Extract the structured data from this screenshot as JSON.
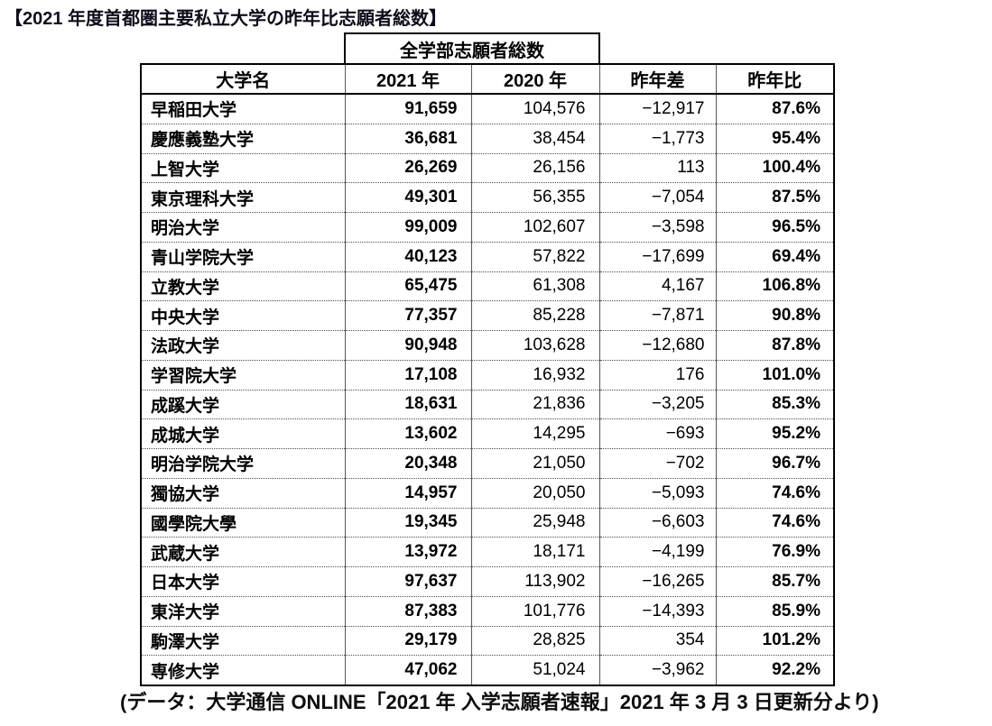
{
  "page": {
    "title": "【2021 年度首都圏主要私立大学の昨年比志願者総数】",
    "source_note": "(データ：大学通信 ONLINE「2021 年 入学志願者速報」2021 年 3 月 3 日更新分より)"
  },
  "chart_data": {
    "type": "table",
    "title": "2021年度首都圏主要私立大学の昨年比志願者総数",
    "merged_column_group_header": "全学部志願者総数",
    "columns": [
      "大学名",
      "2021 年",
      "2020 年",
      "昨年差",
      "昨年比"
    ],
    "rows": [
      {
        "name": "早稲田大学",
        "v2021": "91,659",
        "v2020": "104,576",
        "diff": "−12,917",
        "ratio": "87.6%"
      },
      {
        "name": "慶應義塾大学",
        "v2021": "36,681",
        "v2020": "38,454",
        "diff": "−1,773",
        "ratio": "95.4%"
      },
      {
        "name": "上智大学",
        "v2021": "26,269",
        "v2020": "26,156",
        "diff": "113",
        "ratio": "100.4%"
      },
      {
        "name": "東京理科大学",
        "v2021": "49,301",
        "v2020": "56,355",
        "diff": "−7,054",
        "ratio": "87.5%"
      },
      {
        "name": "明治大学",
        "v2021": "99,009",
        "v2020": "102,607",
        "diff": "−3,598",
        "ratio": "96.5%"
      },
      {
        "name": "青山学院大学",
        "v2021": "40,123",
        "v2020": "57,822",
        "diff": "−17,699",
        "ratio": "69.4%"
      },
      {
        "name": "立教大学",
        "v2021": "65,475",
        "v2020": "61,308",
        "diff": "4,167",
        "ratio": "106.8%"
      },
      {
        "name": "中央大学",
        "v2021": "77,357",
        "v2020": "85,228",
        "diff": "−7,871",
        "ratio": "90.8%"
      },
      {
        "name": "法政大学",
        "v2021": "90,948",
        "v2020": "103,628",
        "diff": "−12,680",
        "ratio": "87.8%"
      },
      {
        "name": "学習院大学",
        "v2021": "17,108",
        "v2020": "16,932",
        "diff": "176",
        "ratio": "101.0%"
      },
      {
        "name": "成蹊大学",
        "v2021": "18,631",
        "v2020": "21,836",
        "diff": "−3,205",
        "ratio": "85.3%"
      },
      {
        "name": "成城大学",
        "v2021": "13,602",
        "v2020": "14,295",
        "diff": "−693",
        "ratio": "95.2%"
      },
      {
        "name": "明治学院大学",
        "v2021": "20,348",
        "v2020": "21,050",
        "diff": "−702",
        "ratio": "96.7%"
      },
      {
        "name": "獨協大学",
        "v2021": "14,957",
        "v2020": "20,050",
        "diff": "−5,093",
        "ratio": "74.6%"
      },
      {
        "name": "國學院大學",
        "v2021": "19,345",
        "v2020": "25,948",
        "diff": "−6,603",
        "ratio": "74.6%"
      },
      {
        "name": "武蔵大学",
        "v2021": "13,972",
        "v2020": "18,171",
        "diff": "−4,199",
        "ratio": "76.9%"
      },
      {
        "name": "日本大学",
        "v2021": "97,637",
        "v2020": "113,902",
        "diff": "−16,265",
        "ratio": "85.7%"
      },
      {
        "name": "東洋大学",
        "v2021": "87,383",
        "v2020": "101,776",
        "diff": "−14,393",
        "ratio": "85.9%"
      },
      {
        "name": "駒澤大学",
        "v2021": "29,179",
        "v2020": "28,825",
        "diff": "354",
        "ratio": "101.2%"
      },
      {
        "name": "専修大学",
        "v2021": "47,062",
        "v2020": "51,024",
        "diff": "−3,962",
        "ratio": "92.2%"
      }
    ]
  }
}
